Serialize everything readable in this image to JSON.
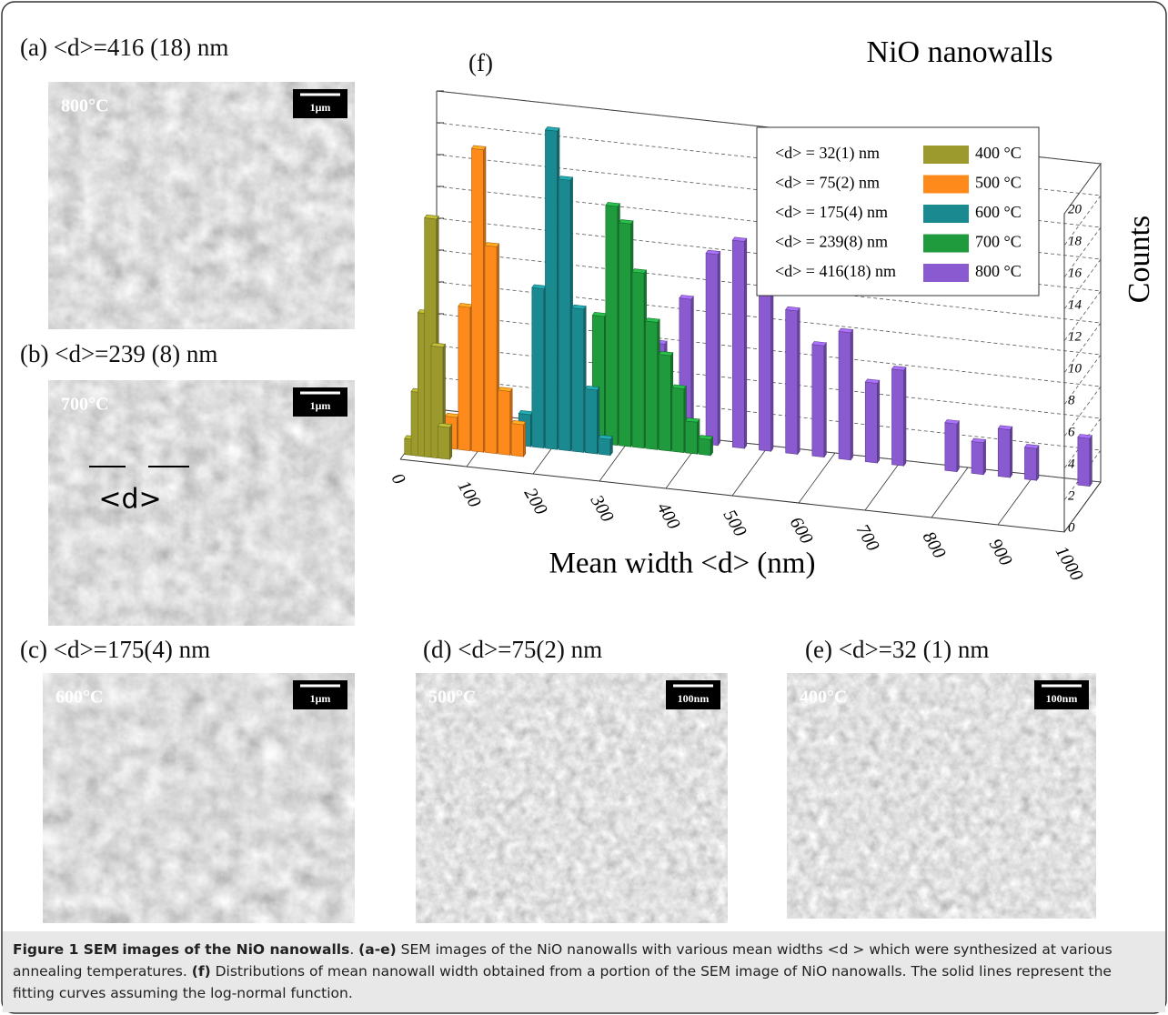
{
  "panels": [
    {
      "label": "(a) <d>=416 (18) nm",
      "temperature": "800°C",
      "scale": "1μm"
    },
    {
      "label": "(b) <d>=239 (8) nm",
      "temperature": "700°C",
      "scale": "1μm",
      "annotation": "<d>"
    },
    {
      "label": "(c) <d>=175(4) nm",
      "temperature": "600°C",
      "scale": "1μm"
    },
    {
      "label": "(d) <d>=75(2) nm",
      "temperature": "500°C",
      "scale": "100nm"
    },
    {
      "label": "(e) <d>=32 (1) nm",
      "temperature": "400°C",
      "scale": "100nm"
    }
  ],
  "chart_data": {
    "type": "bar3d",
    "panel_label": "(f)",
    "title": "NiO nanowalls",
    "xlabel": "Mean width <d> (nm)",
    "ylabel": "Counts",
    "xlim": [
      0,
      1000
    ],
    "xticks": [
      0,
      100,
      200,
      300,
      400,
      500,
      600,
      700,
      800,
      900,
      1000
    ],
    "ylim": [
      0,
      20
    ],
    "yticks": [
      0,
      2,
      4,
      6,
      8,
      10,
      12,
      14,
      16,
      18,
      20
    ],
    "series": [
      {
        "name": "<d> = 32(1) nm",
        "temperature": "400 °C",
        "color": "#9c9a2c",
        "x": [
          10,
          20,
          30,
          40,
          50,
          60
        ],
        "values": [
          1,
          4,
          9,
          15,
          7,
          2
        ]
      },
      {
        "name": "<d> = 75(2) nm",
        "temperature": "500 °C",
        "color": "#ff8a1c",
        "x": [
          60,
          80,
          100,
          120,
          140,
          160
        ],
        "values": [
          2,
          9,
          19,
          13,
          4,
          2
        ]
      },
      {
        "name": "<d> = 175(4) nm",
        "temperature": "600 °C",
        "color": "#1a8a90",
        "x": [
          160,
          180,
          200,
          220,
          240,
          260,
          280
        ],
        "values": [
          2,
          10,
          20,
          17,
          9,
          4,
          1
        ]
      },
      {
        "name": "<d> = 239(8) nm",
        "temperature": "700 °C",
        "color": "#1f9a3c",
        "x": [
          240,
          260,
          280,
          300,
          320,
          340,
          360,
          380,
          400,
          420
        ],
        "values": [
          3,
          8,
          15,
          14,
          11,
          8,
          6,
          4,
          2,
          1
        ]
      },
      {
        "name": "<d> = 416(18) nm",
        "temperature": "800 °C",
        "color": "#8a5ad0",
        "x": [
          340,
          380,
          420,
          460,
          500,
          540,
          580,
          620,
          660,
          700,
          780,
          820,
          860,
          900,
          980
        ],
        "values": [
          6,
          9,
          12,
          13,
          11,
          9,
          7,
          8,
          5,
          6,
          3,
          2,
          3,
          2,
          3
        ]
      }
    ]
  },
  "caption": [
    "Figure 1 SEM images of the NiO nanowalls",
    ". ",
    "(a-e)",
    " SEM images of the NiO nanowalls with various mean widths <d > which were synthesized at various annealing temperatures. ",
    "(f)",
    " Distributions of mean nanowall width obtained from a portion of the SEM image of NiO nanowalls. The solid lines represent the fitting curves assuming the log-normal function."
  ]
}
